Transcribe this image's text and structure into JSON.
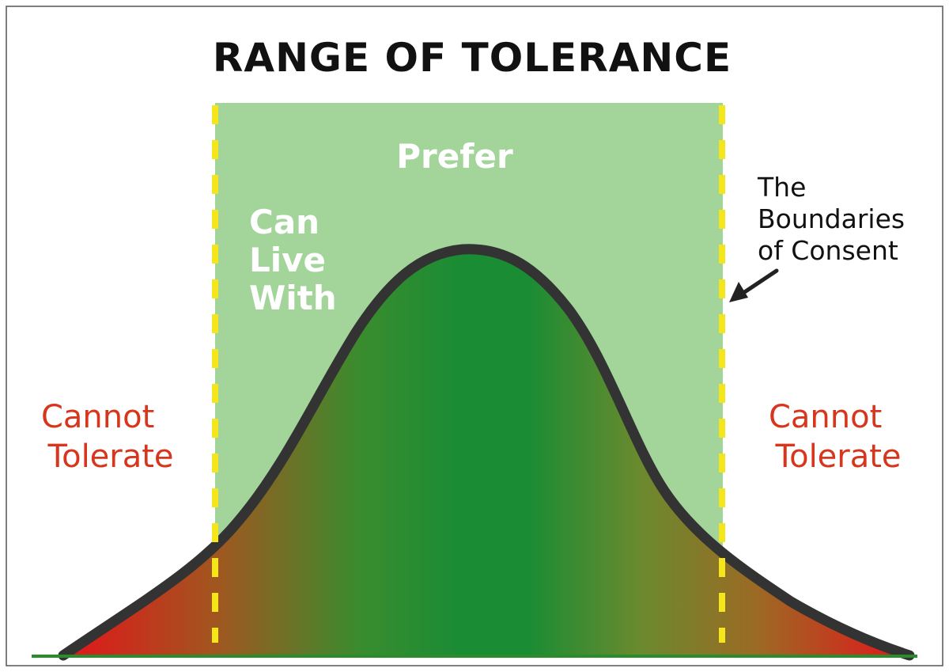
{
  "title": "RANGE OF TOLERANCE",
  "labels": {
    "prefer": "Prefer",
    "can_live_with": [
      "Can",
      "Live",
      "With"
    ],
    "cannot_tolerate_left": [
      "Cannot",
      "Tolerate"
    ],
    "cannot_tolerate_right": [
      "Cannot",
      "Tolerate"
    ],
    "boundaries_of_consent": [
      "The",
      "Boundaries",
      "of Consent"
    ]
  },
  "colors": {
    "band": "#a3d59b",
    "boundary_line": "#f5e51b",
    "curve_outline": "#333333",
    "fill_center": "#1a8c34",
    "fill_edges": "#e3141a",
    "cannot_tolerate_text": "#d8361c",
    "title_text": "#111111",
    "inner_text": "#ffffff"
  }
}
